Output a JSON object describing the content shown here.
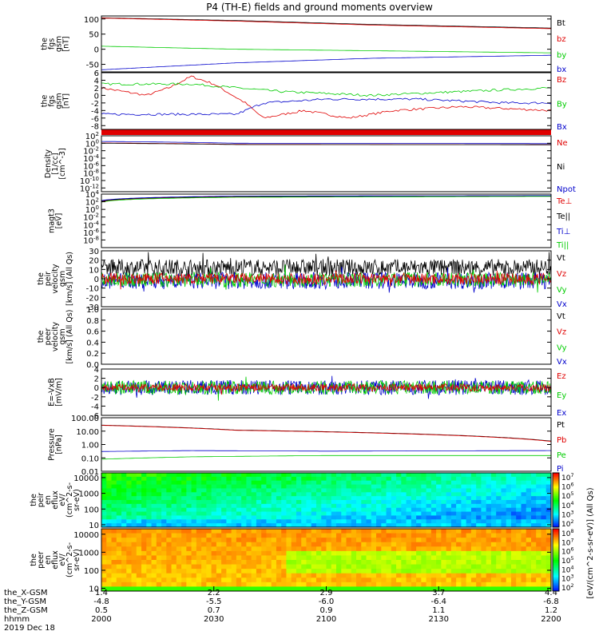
{
  "title": "P4 (TH-E) fields and ground moments overview",
  "colors": {
    "black": "#000000",
    "red": "#e00000",
    "green": "#00cc00",
    "blue": "#0000cc",
    "frame": "#000000"
  },
  "colorbar": {
    "label": "[eV/(cm^2-s-sr-eV)] (All Qs)",
    "ticks": [
      "10^8",
      "10^7",
      "10^6",
      "10^5",
      "10^4",
      "10^3",
      "10^2"
    ]
  },
  "chart_data": [
    {
      "type": "line",
      "name": "fgs",
      "ylabel": [
        "the",
        "fgs",
        "gsm",
        "[nT]"
      ],
      "ylim": [
        -75,
        110
      ],
      "yticks": [
        "100",
        "50",
        "0",
        "-50"
      ],
      "ytick_values": [
        100,
        50,
        0,
        -50
      ],
      "legend": [
        "Bt",
        "bz",
        "by",
        "bx"
      ],
      "series": [
        {
          "name": "Bt",
          "color": "black",
          "x": [
            0,
            0.3,
            0.6,
            1
          ],
          "values": [
            104,
            95,
            82,
            70
          ]
        },
        {
          "name": "bz",
          "color": "red",
          "x": [
            0,
            0.3,
            0.6,
            1
          ],
          "values": [
            103,
            93,
            80,
            68
          ]
        },
        {
          "name": "by",
          "color": "green",
          "x": [
            0,
            0.3,
            0.6,
            1
          ],
          "values": [
            10,
            0,
            -5,
            -12
          ]
        },
        {
          "name": "bx",
          "color": "blue",
          "x": [
            0,
            0.3,
            0.6,
            1
          ],
          "values": [
            -68,
            -45,
            -30,
            -20
          ]
        }
      ]
    },
    {
      "type": "line",
      "name": "fgs_dsp",
      "ylabel": [
        "the",
        "fgs",
        "gsm",
        "[nT]"
      ],
      "ylim": [
        -9,
        6
      ],
      "yticks": [
        "6",
        "4",
        "2",
        "0",
        "-2",
        "-4",
        "-6",
        "-8"
      ],
      "ytick_values": [
        6,
        4,
        2,
        0,
        -2,
        -4,
        -6,
        -8
      ],
      "legend": [
        "Bz",
        "By",
        "Bx"
      ],
      "series": [
        {
          "name": "Bz",
          "color": "red",
          "x": [
            0,
            0.1,
            0.15,
            0.2,
            0.25,
            0.32,
            0.36,
            0.45,
            0.55,
            0.65,
            0.8,
            1
          ],
          "values": [
            2,
            0,
            2,
            5,
            3,
            -2,
            -6,
            -4,
            -6,
            -4,
            -3,
            -4
          ]
        },
        {
          "name": "By",
          "color": "green",
          "x": [
            0,
            0.2,
            0.4,
            0.6,
            0.8,
            1
          ],
          "values": [
            3,
            3,
            1,
            0,
            1,
            2
          ]
        },
        {
          "name": "Bx",
          "color": "blue",
          "x": [
            0,
            0.15,
            0.3,
            0.36,
            0.5,
            0.7,
            0.9,
            1
          ],
          "values": [
            -5,
            -5,
            -5,
            -2,
            -1,
            -1,
            -2,
            -2
          ]
        }
      ]
    },
    {
      "type": "line",
      "name": "density",
      "ylabel": [
        "Density",
        "[1/cc]",
        "[cm^-3]"
      ],
      "ylim": [
        1e-13,
        100
      ],
      "scale": "log",
      "yticks": [
        "10^2",
        "10^0",
        "10^-2",
        "10^-4",
        "10^-6",
        "10^-8",
        "10^-10",
        "10^-12"
      ],
      "ytick_values": [
        100,
        1,
        0.01,
        0.0001,
        1e-06,
        1e-08,
        1e-10,
        1e-12
      ],
      "legend": [
        "Ne",
        "Ni",
        "Npot"
      ],
      "series": [
        {
          "name": "Ne",
          "color": "red",
          "x": [
            0,
            0.3,
            1
          ],
          "values": [
            1.2,
            0.5,
            0.4
          ]
        },
        {
          "name": "Ni",
          "color": "black",
          "x": [
            0,
            0.3,
            1
          ],
          "values": [
            1.0,
            0.45,
            0.4
          ]
        },
        {
          "name": "Npot",
          "color": "blue",
          "x": [
            0,
            0.3,
            1
          ],
          "values": [
            3,
            1,
            0.8
          ]
        }
      ]
    },
    {
      "type": "line",
      "name": "temperature",
      "ylabel": [
        "magt3",
        "[eV]"
      ],
      "ylim": [
        1e-10,
        10000
      ],
      "scale": "log",
      "yticks": [
        "10^4",
        "10^2",
        "10^0",
        "10^-2",
        "10^-4",
        "10^-6",
        "10^-8"
      ],
      "ytick_values": [
        10000,
        100,
        1,
        0.01,
        0.0001,
        1e-06,
        1e-08
      ],
      "legend": [
        "Te⊥",
        "Te||",
        "Ti⊥",
        "Ti||"
      ],
      "series": [
        {
          "name": "Te⊥",
          "color": "red",
          "x": [
            0,
            0.3,
            1
          ],
          "values": [
            100,
            2000,
            3000
          ]
        },
        {
          "name": "Te||",
          "color": "black",
          "x": [
            0,
            0.3,
            1
          ],
          "values": [
            150,
            2500,
            3500
          ]
        },
        {
          "name": "Ti⊥",
          "color": "blue",
          "x": [
            0,
            0.3,
            1
          ],
          "values": [
            200,
            3000,
            4000
          ]
        },
        {
          "name": "Ti||",
          "color": "green",
          "x": [
            0,
            0.3,
            1
          ],
          "values": [
            80,
            1500,
            2500
          ]
        }
      ]
    },
    {
      "type": "line",
      "name": "peir_velocity",
      "ylabel": [
        "the",
        "peir",
        "velocity",
        "gsm",
        "[km/s] (All Qs)"
      ],
      "ylim": [
        -30,
        30
      ],
      "yticks": [
        "30",
        "20",
        "10",
        "0",
        "-10",
        "-20",
        "-30"
      ],
      "ytick_values": [
        30,
        20,
        10,
        0,
        -10,
        -20,
        -30
      ],
      "legend": [
        "Vt",
        "Vz",
        "Vy",
        "Vx"
      ],
      "series": [
        {
          "name": "Vt",
          "color": "black",
          "center": 12,
          "amp": 9
        },
        {
          "name": "Vx",
          "color": "blue",
          "center": -2,
          "amp": 9
        },
        {
          "name": "Vy",
          "color": "green",
          "center": -1,
          "amp": 8
        },
        {
          "name": "Vz",
          "color": "red",
          "center": 0,
          "amp": 6
        }
      ]
    },
    {
      "type": "line",
      "name": "peer_velocity",
      "ylabel": [
        "the",
        "peer",
        "velocity",
        "gsm",
        "[km/s] (All Qs)"
      ],
      "ylim": [
        0,
        1
      ],
      "yticks": [
        "1.0",
        "0.8",
        "0.6",
        "0.4",
        "0.2",
        "0.0"
      ],
      "ytick_values": [
        1,
        0.8,
        0.6,
        0.4,
        0.2,
        0
      ],
      "legend": [
        "Vt",
        "Vz",
        "Vy",
        "Vx"
      ],
      "series": []
    },
    {
      "type": "line",
      "name": "efield",
      "ylabel": [
        "E=-VxB",
        "[mV/m]"
      ],
      "ylim": [
        -6,
        4
      ],
      "yticks": [
        "4",
        "2",
        "0",
        "-2",
        "-4",
        "-6"
      ],
      "ytick_values": [
        4,
        2,
        0,
        -2,
        -4,
        -6
      ],
      "legend": [
        "Ez",
        "Ey",
        "Ex"
      ],
      "series": [
        {
          "name": "Ex",
          "color": "blue",
          "center": 0,
          "amp": 1.6
        },
        {
          "name": "Ey",
          "color": "green",
          "center": 0,
          "amp": 1.5
        },
        {
          "name": "Ez",
          "color": "red",
          "center": 0,
          "amp": 0.8
        }
      ]
    },
    {
      "type": "line",
      "name": "pressure",
      "ylabel": [
        "Pressure",
        "[nPa]"
      ],
      "ylim": [
        0.01,
        100
      ],
      "scale": "log",
      "yticks": [
        "100.00",
        "10.00",
        "1.00",
        "0.10",
        "0.01"
      ],
      "ytick_values": [
        100,
        10,
        1,
        0.1,
        0.01
      ],
      "legend": [
        "Pt",
        "Pb",
        "Pe",
        "Pi"
      ],
      "series": [
        {
          "name": "Pt",
          "color": "black",
          "x": [
            0,
            0.3,
            1
          ],
          "values": [
            28,
            12,
            1.8
          ]
        },
        {
          "name": "Pb",
          "color": "red",
          "x": [
            0,
            0.3,
            1
          ],
          "values": [
            27,
            11.5,
            1.7
          ]
        },
        {
          "name": "Pe",
          "color": "green",
          "x": [
            0,
            0.2,
            0.5,
            1
          ],
          "values": [
            0.08,
            0.12,
            0.15,
            0.15
          ]
        },
        {
          "name": "Pi",
          "color": "blue",
          "x": [
            0,
            0.2,
            0.5,
            1
          ],
          "values": [
            0.3,
            0.35,
            0.32,
            0.35
          ]
        }
      ]
    },
    {
      "type": "heatmap",
      "name": "peir_eflux",
      "ylabel": [
        "the",
        "peir",
        "en",
        "eflux",
        "eV/",
        "(cm^2-s-",
        "sr-eV)"
      ],
      "ylim": [
        7,
        20000
      ],
      "scale": "log",
      "yticks": [
        "10000",
        "1000",
        "100",
        "10"
      ],
      "ytick_values": [
        10000,
        1000,
        100,
        10
      ]
    },
    {
      "type": "heatmap",
      "name": "peer_eflux",
      "ylabel": [
        "the",
        "peer",
        "en",
        "eflux",
        "eV/",
        "(cm^2-s-",
        "sr-eV)"
      ],
      "ylim": [
        7,
        20000
      ],
      "scale": "log",
      "yticks": [
        "10000",
        "1000",
        "100",
        "10"
      ],
      "ytick_values": [
        10000,
        1000,
        100,
        10
      ]
    }
  ],
  "x_axis": {
    "row_labels": [
      "the_X-GSM",
      "the_Y-GSM",
      "the_Z-GSM",
      "hhmm",
      "2019 Dec 18"
    ],
    "ticks": [
      {
        "x": "1.4",
        "y": "-4.8",
        "z": "0.5",
        "hhmm": "2000"
      },
      {
        "x": "2.2",
        "y": "-5.5",
        "z": "0.7",
        "hhmm": "2030"
      },
      {
        "x": "2.9",
        "y": "-6.0",
        "z": "0.9",
        "hhmm": "2100"
      },
      {
        "x": "3.7",
        "y": "-6.4",
        "z": "1.1",
        "hhmm": "2130"
      },
      {
        "x": "4.4",
        "y": "-6.8",
        "z": "1.2",
        "hhmm": "2200"
      }
    ]
  }
}
